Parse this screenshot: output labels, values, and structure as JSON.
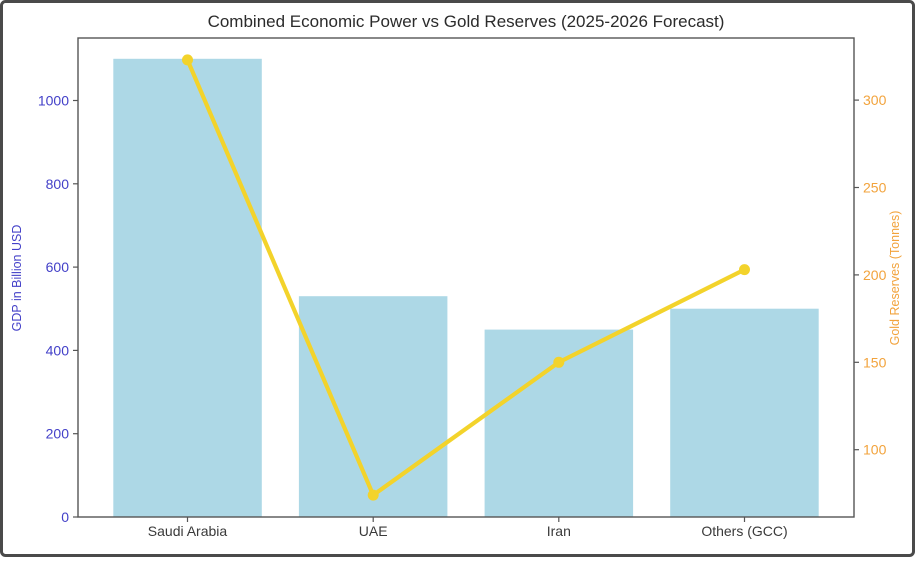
{
  "colors": {
    "bar": "#ADD8E6",
    "line": "#F3D32B",
    "marker": "#F3D32B",
    "left_axis_text": "#4340C8",
    "right_axis_text": "#F2A33C",
    "x_tick_text": "#3A3A3A",
    "title_text": "#2B2B2B",
    "spine": "#555555",
    "figure_border": "#4A4A4A",
    "background": "#FFFFFF"
  },
  "chart_data": {
    "type": "bar",
    "title": "Combined Economic Power vs Gold Reserves (2025-2026 Forecast)",
    "categories": [
      "Saudi Arabia",
      "UAE",
      "Iran",
      "Others (GCC)"
    ],
    "series": [
      {
        "name": "GDP",
        "render": "bar",
        "axis": "left",
        "values": [
          1100,
          530,
          450,
          500
        ]
      },
      {
        "name": "Gold Reserves",
        "render": "line",
        "axis": "right",
        "values": [
          323,
          74,
          150,
          203
        ]
      }
    ],
    "ylabel_left": "GDP in Billion USD",
    "ylabel_right": "Gold Reserves (Tonnes)",
    "ylim_left": [
      0,
      1150
    ],
    "ylim_right": [
      61.5,
      335.5
    ],
    "yticks_left": [
      0,
      200,
      400,
      600,
      800,
      1000
    ],
    "yticks_right": [
      100,
      150,
      200,
      250,
      300
    ],
    "xlim_units": [
      -0.59,
      3.59
    ],
    "bar_width_units": 0.8,
    "grid": false,
    "legend": "none"
  }
}
